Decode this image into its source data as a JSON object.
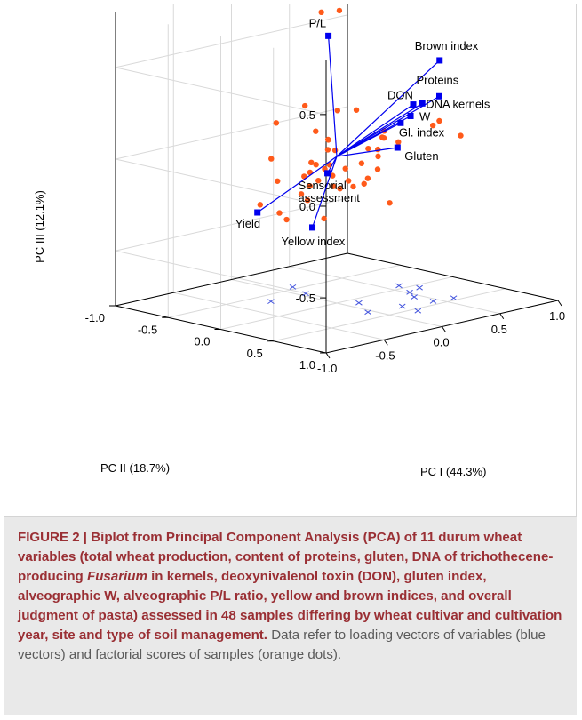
{
  "figure": {
    "caption_label": "FIGURE 2 |",
    "caption_bold_1": " Biplot from Principal Component Analysis (PCA) of 11 durum wheat variables (total wheat production, content of proteins, gluten, DNA of trichothecene-producing ",
    "caption_italic": "Fusarium",
    "caption_bold_2": " in kernels, deoxynivalenol toxin (DON), gluten index, alveographic W, alveographic P/L ratio, yellow and brown indices, and overall judgment of pasta) assessed in 48 samples differing by wheat cultivar and cultivation year, site and type of soil management.",
    "caption_tail": " Data refer to loading vectors of variables (blue vectors) and factorial scores of samples (orange dots)."
  },
  "chart_data": {
    "type": "scatter",
    "title": "",
    "axes": {
      "x": {
        "label": "PC I (44.3%)",
        "range": [
          -1.0,
          1.0
        ],
        "ticks": [
          "-1.0",
          "-0.5",
          "0.0",
          "0.5",
          "1.0"
        ]
      },
      "y": {
        "label": "PC II (18.7%)",
        "range": [
          -1.0,
          1.0
        ],
        "ticks": [
          "-1.0",
          "-0.5",
          "0.0",
          "0.5",
          "1.0"
        ]
      },
      "z": {
        "label": "PC III (12.1%)",
        "range": [
          -0.8,
          0.8
        ],
        "ticks": [
          "-0.5",
          "0.0",
          "0.5"
        ]
      }
    },
    "grid": true,
    "colors": {
      "vectors": "#0000ee",
      "samples": "#ff5a1a",
      "projections": "#4455dd"
    },
    "loadings": [
      {
        "name": "P/L",
        "label": "P/L",
        "x": -0.29,
        "y": 0.24,
        "z": 0.73
      },
      {
        "name": "Brown index",
        "label": "Brown index",
        "x": 0.56,
        "y": 0.36,
        "z": 0.49
      },
      {
        "name": "Proteins",
        "label": "Proteins",
        "x": 0.54,
        "y": 0.38,
        "z": 0.3
      },
      {
        "name": "DON",
        "label": "DON",
        "x": 0.55,
        "y": 0.12,
        "z": 0.22
      },
      {
        "name": "DNA kernels",
        "label": "DNA kernels",
        "x": 0.61,
        "y": 0.14,
        "z": 0.22
      },
      {
        "name": "Gl. index",
        "label": "Gl. index",
        "x": 0.46,
        "y": 0.1,
        "z": 0.13
      },
      {
        "name": "W",
        "label": "W",
        "x": 0.6,
        "y": 0.04,
        "z": 0.14
      },
      {
        "name": "Gluten",
        "label": "Gluten",
        "x": 0.36,
        "y": 0.18,
        "z": 0.02
      },
      {
        "name": "Sensorial assessment",
        "label_lines": [
          "Sensorial",
          "assessment"
        ],
        "x": -0.08,
        "y": 0.0,
        "z": -0.08
      },
      {
        "name": "Yield",
        "label": "Yield",
        "x": -0.43,
        "y": -0.28,
        "z": -0.28
      },
      {
        "name": "Yellow index",
        "label": "Yellow index",
        "x": 0.08,
        "y": -0.32,
        "z": -0.44
      }
    ],
    "scores": [
      [
        -0.36,
        0.25,
        0.87
      ],
      [
        -0.25,
        0.3,
        0.87
      ],
      [
        -0.22,
        -0.06,
        0.3
      ],
      [
        -0.1,
        -0.09,
        0.14
      ],
      [
        -0.03,
        0.04,
        0.26
      ],
      [
        0.06,
        0.12,
        0.26
      ],
      [
        -0.25,
        -0.3,
        0.18
      ],
      [
        -0.03,
        -0.05,
        0.09
      ],
      [
        0.0,
        -0.08,
        0.08
      ],
      [
        -0.05,
        -0.03,
        0.04
      ],
      [
        -0.22,
        -0.38,
        -0.03
      ],
      [
        0.1,
        0.28,
        0.06
      ],
      [
        0.17,
        0.26,
        0.11
      ],
      [
        0.21,
        0.2,
        0.1
      ],
      [
        0.2,
        0.23,
        0.14
      ],
      [
        0.63,
        0.28,
        0.14
      ],
      [
        0.62,
        0.23,
        0.11
      ],
      [
        0.86,
        0.23,
        0.02
      ],
      [
        0.54,
        -0.01,
        0.0
      ],
      [
        0.32,
        0.04,
        -0.04
      ],
      [
        0.02,
        -0.09,
        -0.06
      ],
      [
        -0.12,
        -0.11,
        -0.03
      ],
      [
        0.06,
        -0.18,
        -0.1
      ],
      [
        -0.05,
        -0.12,
        -0.14
      ],
      [
        -0.1,
        -0.2,
        -0.12
      ],
      [
        0.0,
        -0.04,
        -0.11
      ],
      [
        0.02,
        -0.3,
        -0.28
      ],
      [
        0.08,
        -0.12,
        -0.19
      ],
      [
        -0.24,
        -0.28,
        -0.31
      ],
      [
        -0.13,
        -0.42,
        -0.17
      ],
      [
        -0.17,
        -0.15,
        -0.2
      ],
      [
        -0.16,
        -0.3,
        -0.36
      ],
      [
        0.09,
        -0.22,
        -0.38
      ],
      [
        0.1,
        -0.08,
        -0.2
      ],
      [
        0.11,
        -0.01,
        -0.15
      ],
      [
        0.16,
        -0.02,
        -0.19
      ],
      [
        0.19,
        0.05,
        -0.17
      ],
      [
        0.24,
        0.03,
        -0.15
      ],
      [
        0.32,
        0.15,
        -0.28
      ],
      [
        -0.27,
        -0.43,
        -0.28
      ],
      [
        -0.07,
        -0.12,
        -0.05
      ],
      [
        -0.14,
        -0.1,
        -0.08
      ],
      [
        0.04,
        -0.06,
        0.02
      ],
      [
        0.15,
        0.07,
        -0.05
      ],
      [
        0.18,
        0.1,
        0.03
      ],
      [
        0.12,
        -0.05,
        -0.09
      ],
      [
        -0.05,
        -0.2,
        -0.18
      ],
      [
        0.28,
        0.08,
        -0.1
      ]
    ],
    "floor_marks": [
      [
        -0.04,
        0.34
      ],
      [
        0.22,
        0.38
      ],
      [
        0.2,
        0.55
      ],
      [
        0.1,
        0.1
      ],
      [
        0.45,
        0.42
      ],
      [
        0.6,
        0.45
      ],
      [
        0.45,
        0.24
      ],
      [
        0.52,
        0.12
      ],
      [
        0.65,
        0.07
      ],
      [
        0.6,
        -0.07
      ],
      [
        -0.25,
        -0.35
      ],
      [
        0.05,
        -0.35
      ],
      [
        0.12,
        -0.55
      ]
    ]
  }
}
